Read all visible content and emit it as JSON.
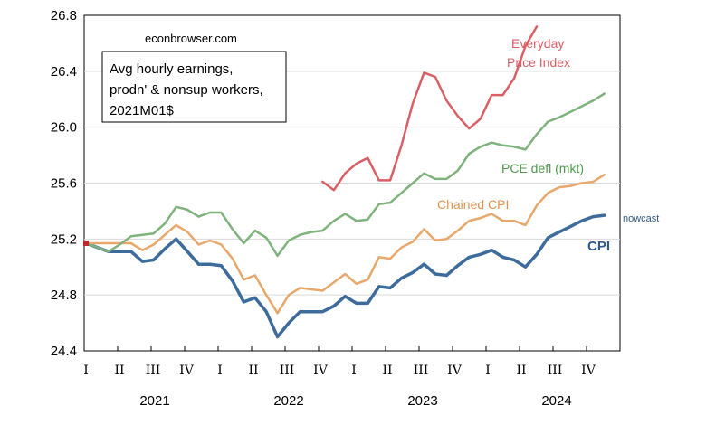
{
  "chart_data": {
    "type": "line",
    "source_label": "econbrowser.com",
    "title_lines": [
      "Avg hourly earnings,",
      "prodn' & nonsup workers,",
      "2021M01$"
    ],
    "ylim": [
      24.4,
      26.8
    ],
    "y_ticks": [
      "24.4",
      "24.8",
      "25.2",
      "25.6",
      "26.0",
      "26.4",
      "26.8"
    ],
    "quarters": [
      "I",
      "II",
      "III",
      "IV",
      "I",
      "II",
      "III",
      "IV",
      "I",
      "II",
      "III",
      "IV",
      "I",
      "II",
      "III",
      "IV"
    ],
    "years": [
      "2021",
      "2022",
      "2023",
      "2024"
    ],
    "x_start": "2021-01",
    "series": [
      {
        "name": "CPI",
        "color": "#3d6b9c",
        "width": 3.5,
        "start_index": 0,
        "values": [
          25.17,
          25.14,
          25.11,
          25.11,
          25.11,
          25.04,
          25.05,
          25.13,
          25.2,
          25.11,
          25.02,
          25.02,
          25.01,
          24.9,
          24.75,
          24.78,
          24.68,
          24.5,
          24.6,
          24.68,
          24.68,
          24.68,
          24.72,
          24.79,
          24.74,
          24.74,
          24.86,
          24.85,
          24.92,
          24.96,
          25.02,
          24.95,
          24.94,
          25.01,
          25.07,
          25.09,
          25.12,
          25.07,
          25.05,
          25.0,
          25.09,
          25.21,
          25.25,
          25.29,
          25.33,
          25.36,
          25.37
        ]
      },
      {
        "name": "Chained CPI",
        "color": "#e8a76b",
        "width": 2.5,
        "start_index": 0,
        "values": [
          25.17,
          25.17,
          25.17,
          25.17,
          25.17,
          25.12,
          25.16,
          25.23,
          25.3,
          25.25,
          25.16,
          25.19,
          25.16,
          25.06,
          24.91,
          24.94,
          24.8,
          24.67,
          24.8,
          24.85,
          24.84,
          24.83,
          24.89,
          24.95,
          24.88,
          24.91,
          25.07,
          25.06,
          25.14,
          25.18,
          25.27,
          25.19,
          25.2,
          25.26,
          25.33,
          25.35,
          25.38,
          25.33,
          25.33,
          25.3,
          25.44,
          25.53,
          25.57,
          25.58,
          25.6,
          25.61,
          25.66
        ]
      },
      {
        "name": "PCE defl (mkt)",
        "color": "#7fb27c",
        "width": 2.5,
        "start_index": 0,
        "values": [
          25.17,
          25.14,
          25.11,
          25.16,
          25.22,
          25.23,
          25.24,
          25.31,
          25.43,
          25.41,
          25.36,
          25.39,
          25.39,
          25.27,
          25.17,
          25.26,
          25.21,
          25.08,
          25.19,
          25.23,
          25.25,
          25.26,
          25.33,
          25.38,
          25.33,
          25.34,
          25.45,
          25.46,
          25.53,
          25.6,
          25.67,
          25.63,
          25.63,
          25.69,
          25.81,
          25.86,
          25.89,
          25.87,
          25.86,
          25.84,
          25.95,
          26.04,
          26.07,
          26.11,
          26.15,
          26.19,
          26.24
        ]
      },
      {
        "name": "Everyday Price Index",
        "color": "#d95f64",
        "width": 2.5,
        "start_index": 21,
        "values": [
          25.61,
          25.55,
          25.67,
          25.74,
          25.78,
          25.62,
          25.62,
          25.87,
          26.17,
          26.39,
          26.36,
          26.19,
          26.08,
          25.99,
          26.06,
          26.23,
          26.23,
          26.35,
          26.58,
          26.72
        ]
      }
    ],
    "annotations": {
      "epi_line1": "Everyday",
      "epi_line2": "Price Index",
      "pce": "PCE defl (mkt)",
      "chained": "Chained CPI",
      "cpi": "CPI",
      "nowcast": "nowcast"
    },
    "marker_color": "#c0272d"
  }
}
